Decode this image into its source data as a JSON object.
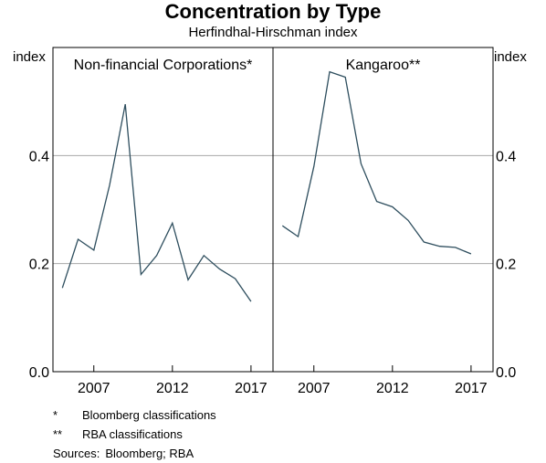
{
  "title": "Concentration by Type",
  "subtitle": "Herfindhal-Hirschman index",
  "chart_data": {
    "type": "line",
    "ylabel_left": "index",
    "ylabel_right": "index",
    "ylim": [
      0,
      0.6
    ],
    "yticks": [
      0.0,
      0.2,
      0.4
    ],
    "ytick_labels": [
      "0.0",
      "0.2",
      "0.4"
    ],
    "xlim": [
      2004.4,
      2018.4
    ],
    "xticks": [
      2007,
      2012,
      2017
    ],
    "xtick_labels": [
      "2007",
      "2012",
      "2017"
    ],
    "grid": true,
    "panels": [
      {
        "title": "Non-financial Corporations*",
        "series": [
          {
            "x": [
              2005,
              2006,
              2007,
              2008,
              2009,
              2010,
              2011,
              2012,
              2013,
              2014,
              2015,
              2016,
              2017
            ],
            "values": [
              0.155,
              0.245,
              0.225,
              0.345,
              0.495,
              0.18,
              0.215,
              0.275,
              0.17,
              0.215,
              0.19,
              0.172,
              0.13
            ]
          }
        ]
      },
      {
        "title": "Kangaroo**",
        "series": [
          {
            "x": [
              2005,
              2006,
              2007,
              2008,
              2009,
              2010,
              2011,
              2012,
              2013,
              2014,
              2015,
              2016,
              2017
            ],
            "values": [
              0.27,
              0.25,
              0.38,
              0.555,
              0.545,
              0.385,
              0.315,
              0.305,
              0.28,
              0.24,
              0.232,
              0.23,
              0.218
            ]
          }
        ]
      }
    ]
  },
  "footnotes": [
    {
      "mark": "*",
      "text": "Bloomberg classifications"
    },
    {
      "mark": "**",
      "text": "RBA classifications"
    }
  ],
  "sources": {
    "label": "Sources:",
    "text": "Bloomberg; RBA"
  }
}
